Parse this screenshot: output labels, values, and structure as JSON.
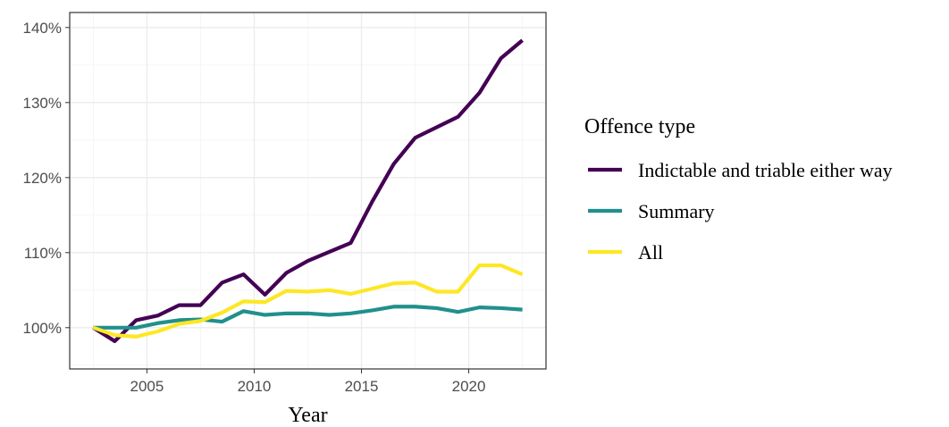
{
  "chart_data": {
    "type": "line",
    "xlabel": "Year",
    "ylabel": "",
    "xlim": [
      2001.4,
      2023.6
    ],
    "ylim": [
      94.5,
      142
    ],
    "x_ticks": [
      2005,
      2010,
      2015,
      2020
    ],
    "x_tick_labels": [
      "2005",
      "2010",
      "2015",
      "2020"
    ],
    "y_ticks": [
      100,
      110,
      120,
      130,
      140
    ],
    "y_tick_labels": [
      "100%",
      "110%",
      "120%",
      "130%",
      "140%"
    ],
    "grid": true,
    "legend": {
      "title": "Offence type",
      "position": "right"
    },
    "x": [
      2002.5,
      2003.5,
      2004.5,
      2005.5,
      2006.5,
      2007.5,
      2008.5,
      2009.5,
      2010.5,
      2011.5,
      2012.5,
      2013.5,
      2014.5,
      2015.5,
      2016.5,
      2017.5,
      2018.5,
      2019.5,
      2020.5,
      2021.5,
      2022.5
    ],
    "series": [
      {
        "name": "Indictable and triable either way",
        "color": "#440154",
        "values": [
          100.0,
          98.2,
          101.0,
          101.6,
          103.0,
          103.0,
          106.0,
          107.1,
          104.4,
          107.3,
          108.9,
          110.1,
          111.3,
          116.8,
          121.8,
          125.3,
          126.7,
          128.1,
          131.3,
          135.9,
          138.3
        ]
      },
      {
        "name": "Summary",
        "color": "#21908C",
        "values": [
          100.0,
          100.0,
          100.0,
          100.6,
          101.0,
          101.1,
          100.8,
          102.2,
          101.7,
          101.9,
          101.9,
          101.7,
          101.9,
          102.3,
          102.8,
          102.8,
          102.6,
          102.1,
          102.7,
          102.6,
          102.4
        ]
      },
      {
        "name": "All",
        "color": "#FDE725",
        "values": [
          100.0,
          99.0,
          98.8,
          99.5,
          100.5,
          100.9,
          102.0,
          103.5,
          103.4,
          104.9,
          104.8,
          105.0,
          104.5,
          105.2,
          105.9,
          106.0,
          104.8,
          104.8,
          108.3,
          108.3,
          107.1
        ]
      }
    ]
  }
}
